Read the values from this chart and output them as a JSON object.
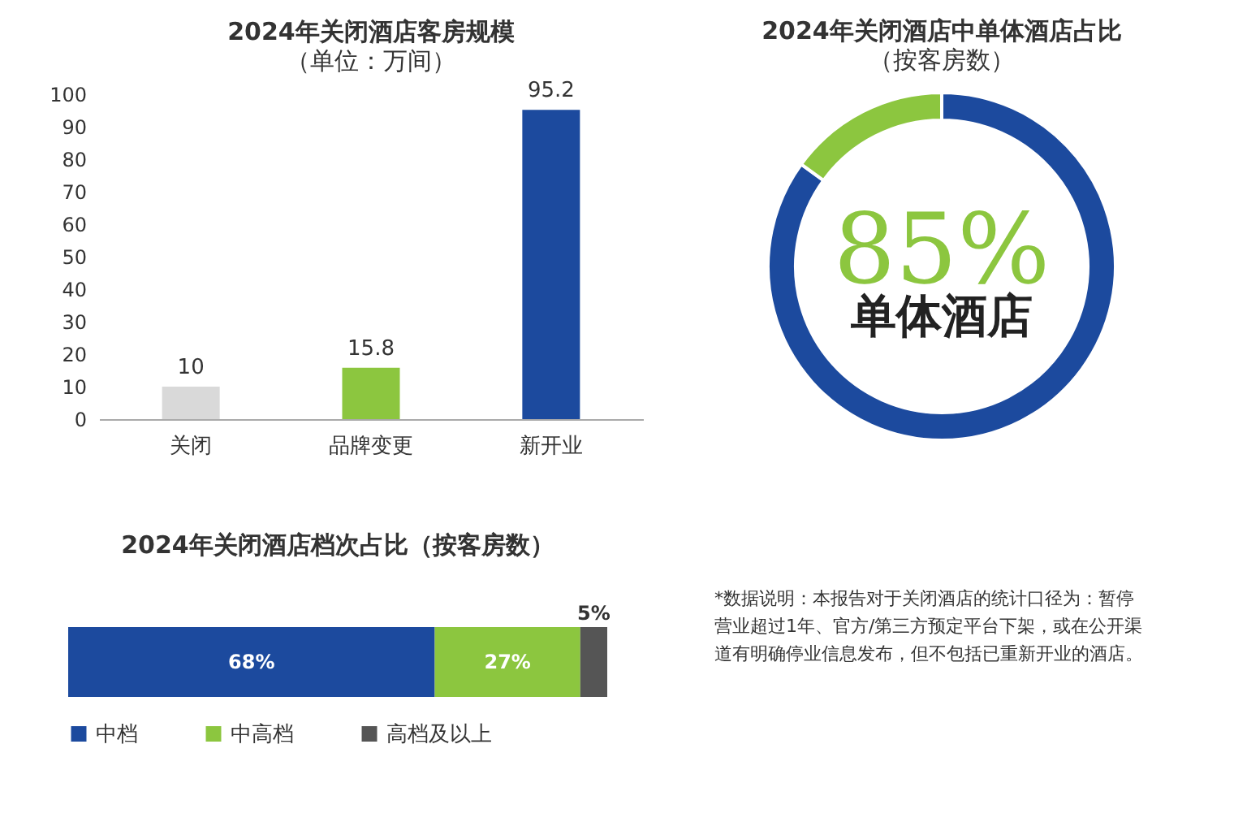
{
  "chart_data": [
    {
      "type": "bar",
      "title": "2024年关闭酒店客房规模",
      "subtitle": "（单位：万间）",
      "categories": [
        "关闭",
        "品牌变更",
        "新开业"
      ],
      "values": [
        10,
        15.8,
        95.2
      ],
      "colors": [
        "#d9d9d9",
        "#8cc63f",
        "#1c4a9e"
      ],
      "ylim": [
        0,
        100
      ],
      "yticks": [
        0,
        10,
        20,
        30,
        40,
        50,
        60,
        70,
        80,
        90,
        100
      ],
      "data_labels": true,
      "grid": false
    },
    {
      "type": "donut",
      "title": "2024年关闭酒店中单体酒店占比",
      "subtitle": "（按客房数）",
      "categories": [
        "单体酒店",
        null
      ],
      "values": [
        85,
        15
      ],
      "colors": [
        "#1c4a9e",
        "#8cc63f"
      ],
      "value_labels": [
        "85%",
        null
      ]
    },
    {
      "type": "bar",
      "orientation": "horizontal",
      "stacked": true,
      "title": "2024年关闭酒店档次占比（按客房数）",
      "categories": [
        null
      ],
      "legend": "bottom",
      "series": [
        {
          "name": "中档",
          "color": "#1c4a9e",
          "values": [
            68
          ],
          "value_labels": [
            "68%"
          ]
        },
        {
          "name": "中高档",
          "color": "#8cc63f",
          "values": [
            27
          ],
          "value_labels": [
            "27%"
          ]
        },
        {
          "name": "高档及以上",
          "color": "#555555",
          "values": [
            5
          ],
          "value_labels": [
            "5%"
          ]
        }
      ],
      "annotations": [
        "*数据说明：本报告对于关闭酒店的统计口径为：暂停营业超过1年、官方/第三方预定平台下架，或在公开渠道有明确停业信息发布，但不包括已重新开业的酒店。"
      ]
    }
  ]
}
